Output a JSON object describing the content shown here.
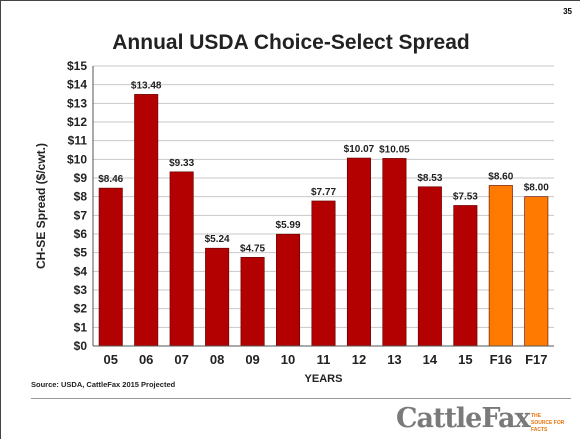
{
  "page_number": "35",
  "source": "Source: USDA, CattleFax 2015 Projected",
  "logo_text": "CattleFax",
  "logo_tagline": [
    "THE",
    "SOURCE FOR",
    "FACTS"
  ],
  "colors": {
    "bar": "#b30000",
    "projected_bar": "#ff7a00",
    "bar_edge": "#600000",
    "grid": "#c8c8c8"
  },
  "chart_data": {
    "type": "bar",
    "title": "Annual USDA Choice-Select Spread",
    "xlabel": "YEARS",
    "ylabel": "CH-SE Spread ($/cwt.)",
    "ylim": [
      0,
      15
    ],
    "yticks": [
      "$0",
      "$1",
      "$2",
      "$3",
      "$4",
      "$5",
      "$6",
      "$7",
      "$8",
      "$9",
      "$10",
      "$11",
      "$12",
      "$13",
      "$14",
      "$15"
    ],
    "categories": [
      "05",
      "06",
      "07",
      "08",
      "09",
      "10",
      "11",
      "12",
      "13",
      "14",
      "15",
      "F16",
      "F17"
    ],
    "values": [
      8.46,
      13.48,
      9.33,
      5.24,
      4.75,
      5.99,
      7.77,
      10.07,
      10.05,
      8.53,
      7.53,
      8.6,
      8.0
    ],
    "labels": [
      "$8.46",
      "$13.48",
      "$9.33",
      "$5.24",
      "$4.75",
      "$5.99",
      "$7.77",
      "$10.07",
      "$10.05",
      "$8.53",
      "$7.53",
      "$8.60",
      "$8.00"
    ],
    "projected": [
      false,
      false,
      false,
      false,
      false,
      false,
      false,
      false,
      false,
      false,
      false,
      true,
      true
    ],
    "grid": true
  }
}
